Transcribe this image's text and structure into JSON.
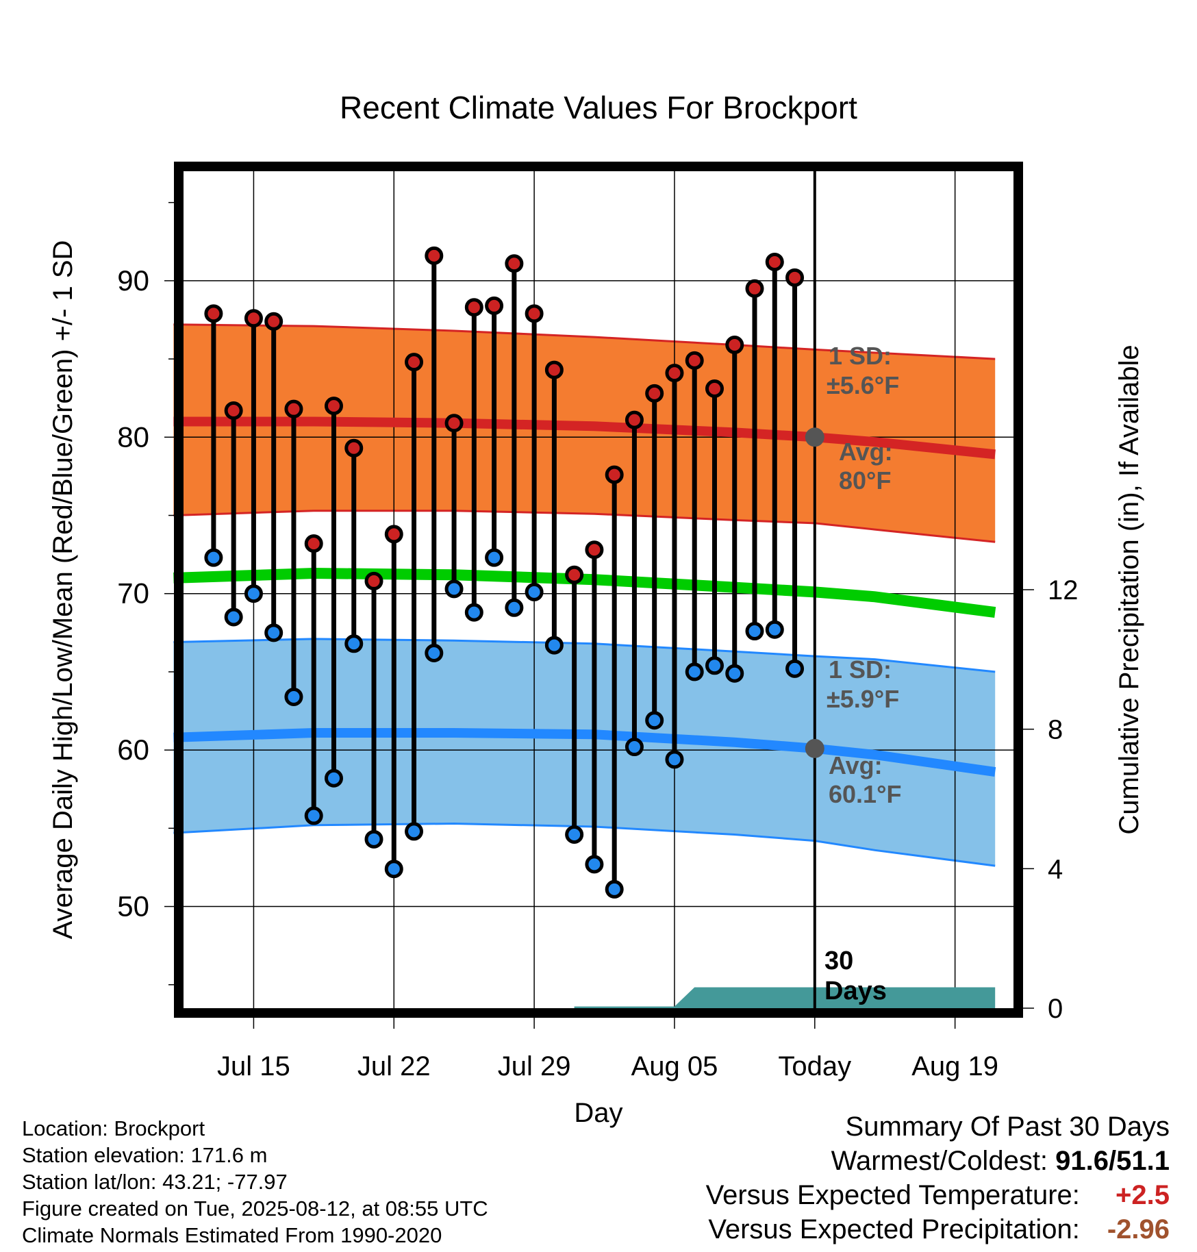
{
  "chart_data": {
    "type": "line",
    "title": "Recent Climate Values For Brockport",
    "xlabel": "Day",
    "ylabel": "Average Daily High/Low/Mean (Red/Blue/Green) +/- 1 SD",
    "ylabel_right": "Cumulative Precipitation (in), If Available",
    "ylim": [
      43.5,
      97
    ],
    "y_ticks": [
      50,
      60,
      70,
      80,
      90
    ],
    "y2lim": [
      0,
      24
    ],
    "y2_ticks": [
      0,
      4,
      8,
      12
    ],
    "x_ticks": [
      {
        "date": "2025-07-15",
        "label": "Jul 15"
      },
      {
        "date": "2025-07-22",
        "label": "Jul 22"
      },
      {
        "date": "2025-07-29",
        "label": "Jul 29"
      },
      {
        "date": "2025-08-05",
        "label": "Aug 05"
      },
      {
        "date": "2025-08-12",
        "label": "Today"
      },
      {
        "date": "2025-08-19",
        "label": "Aug 19"
      }
    ],
    "xlim": [
      "2025-07-11T12:00",
      "2025-08-21T22:00"
    ],
    "today": "2025-08-12",
    "days": [
      "2025-07-13",
      "2025-07-14",
      "2025-07-15",
      "2025-07-16",
      "2025-07-17",
      "2025-07-18",
      "2025-07-19",
      "2025-07-20",
      "2025-07-21",
      "2025-07-22",
      "2025-07-23",
      "2025-07-24",
      "2025-07-25",
      "2025-07-26",
      "2025-07-27",
      "2025-07-28",
      "2025-07-29",
      "2025-07-30",
      "2025-07-31",
      "2025-08-01",
      "2025-08-02",
      "2025-08-03",
      "2025-08-04",
      "2025-08-05",
      "2025-08-06",
      "2025-08-07",
      "2025-08-08",
      "2025-08-09",
      "2025-08-10",
      "2025-08-11"
    ],
    "series": [
      {
        "name": "High",
        "color": "#cc2222",
        "values": [
          87.9,
          81.7,
          87.6,
          87.4,
          81.8,
          73.2,
          82.0,
          79.3,
          70.8,
          73.8,
          84.8,
          91.6,
          80.9,
          88.3,
          88.4,
          91.1,
          87.9,
          84.3,
          71.2,
          72.8,
          77.6,
          81.1,
          82.8,
          84.1,
          84.9,
          83.1,
          85.9,
          89.5,
          91.2,
          90.2
        ]
      },
      {
        "name": "Low",
        "color": "#2288ee",
        "values": [
          72.3,
          68.5,
          70.0,
          67.5,
          63.4,
          55.8,
          58.2,
          66.8,
          54.3,
          52.4,
          54.8,
          66.2,
          70.3,
          68.8,
          72.3,
          69.1,
          70.1,
          66.7,
          54.6,
          52.7,
          51.1,
          60.2,
          61.9,
          59.4,
          65.0,
          65.4,
          64.9,
          67.6,
          67.7,
          65.2
        ]
      }
    ],
    "normals": {
      "dates": [
        "2025-07-11",
        "2025-07-18",
        "2025-07-25",
        "2025-08-01",
        "2025-08-08",
        "2025-08-12",
        "2025-08-15",
        "2025-08-21"
      ],
      "high_avg": [
        81.0,
        81.0,
        80.9,
        80.7,
        80.3,
        80.0,
        79.7,
        78.9
      ],
      "high_upper": [
        87.2,
        87.1,
        86.8,
        86.4,
        85.9,
        85.6,
        85.4,
        85.0
      ],
      "high_lower": [
        75.0,
        75.3,
        75.3,
        75.1,
        74.7,
        74.5,
        74.1,
        73.3
      ],
      "mean_avg": [
        71.0,
        71.3,
        71.2,
        70.9,
        70.4,
        70.1,
        69.8,
        68.8
      ],
      "low_avg": [
        60.8,
        61.1,
        61.1,
        61.0,
        60.5,
        60.1,
        59.7,
        58.6
      ],
      "low_upper": [
        66.9,
        67.1,
        67.0,
        66.8,
        66.3,
        66.0,
        65.8,
        65.0
      ],
      "low_lower": [
        54.7,
        55.2,
        55.3,
        55.1,
        54.6,
        54.2,
        53.6,
        52.6
      ]
    },
    "precip_area": {
      "color": "#449999",
      "points": [
        [
          "2025-07-13",
          0
        ],
        [
          "2025-07-31",
          0
        ],
        [
          "2025-07-31",
          0.05
        ],
        [
          "2025-08-05",
          0.05
        ],
        [
          "2025-08-06",
          0.6
        ],
        [
          "2025-08-21",
          0.6
        ]
      ]
    },
    "annotations": {
      "high_sd": "1 SD:",
      "high_sd_value": "±5.6°F",
      "high_avg_label": "Avg:",
      "high_avg_value": "80°F",
      "low_sd": "1 SD:",
      "low_sd_value": "±5.9°F",
      "low_avg_label": "Avg:",
      "low_avg_value": "60.1°F",
      "days_number": "30",
      "days_word": "Days"
    },
    "colors": {
      "high_band": "#f47c30",
      "high_line": "#d42424",
      "mean_line": "#00cc00",
      "low_band": "#85c1e9",
      "low_line": "#2288ff",
      "annotation": "#555555"
    },
    "grid": true
  },
  "footer": {
    "location": "Location: Brockport",
    "elevation": "Station elevation: 171.6 m",
    "latlon": "Station lat/lon: 43.21; -77.97",
    "created": "Figure created on Tue, 2025-08-12, at 08:55 UTC",
    "normals": "Climate Normals Estimated From 1990-2020"
  },
  "summary": {
    "heading": "Summary Of Past 30 Days",
    "warm_cold_label": "Warmest/Coldest:",
    "warm_cold_value": "91.6/51.1",
    "temp_label": "Versus Expected Temperature:",
    "temp_value": "+2.5",
    "temp_color": "#cc2222",
    "precip_label": "Versus Expected Precipitation:",
    "precip_value": "-2.96",
    "precip_color": "#a0522d"
  }
}
